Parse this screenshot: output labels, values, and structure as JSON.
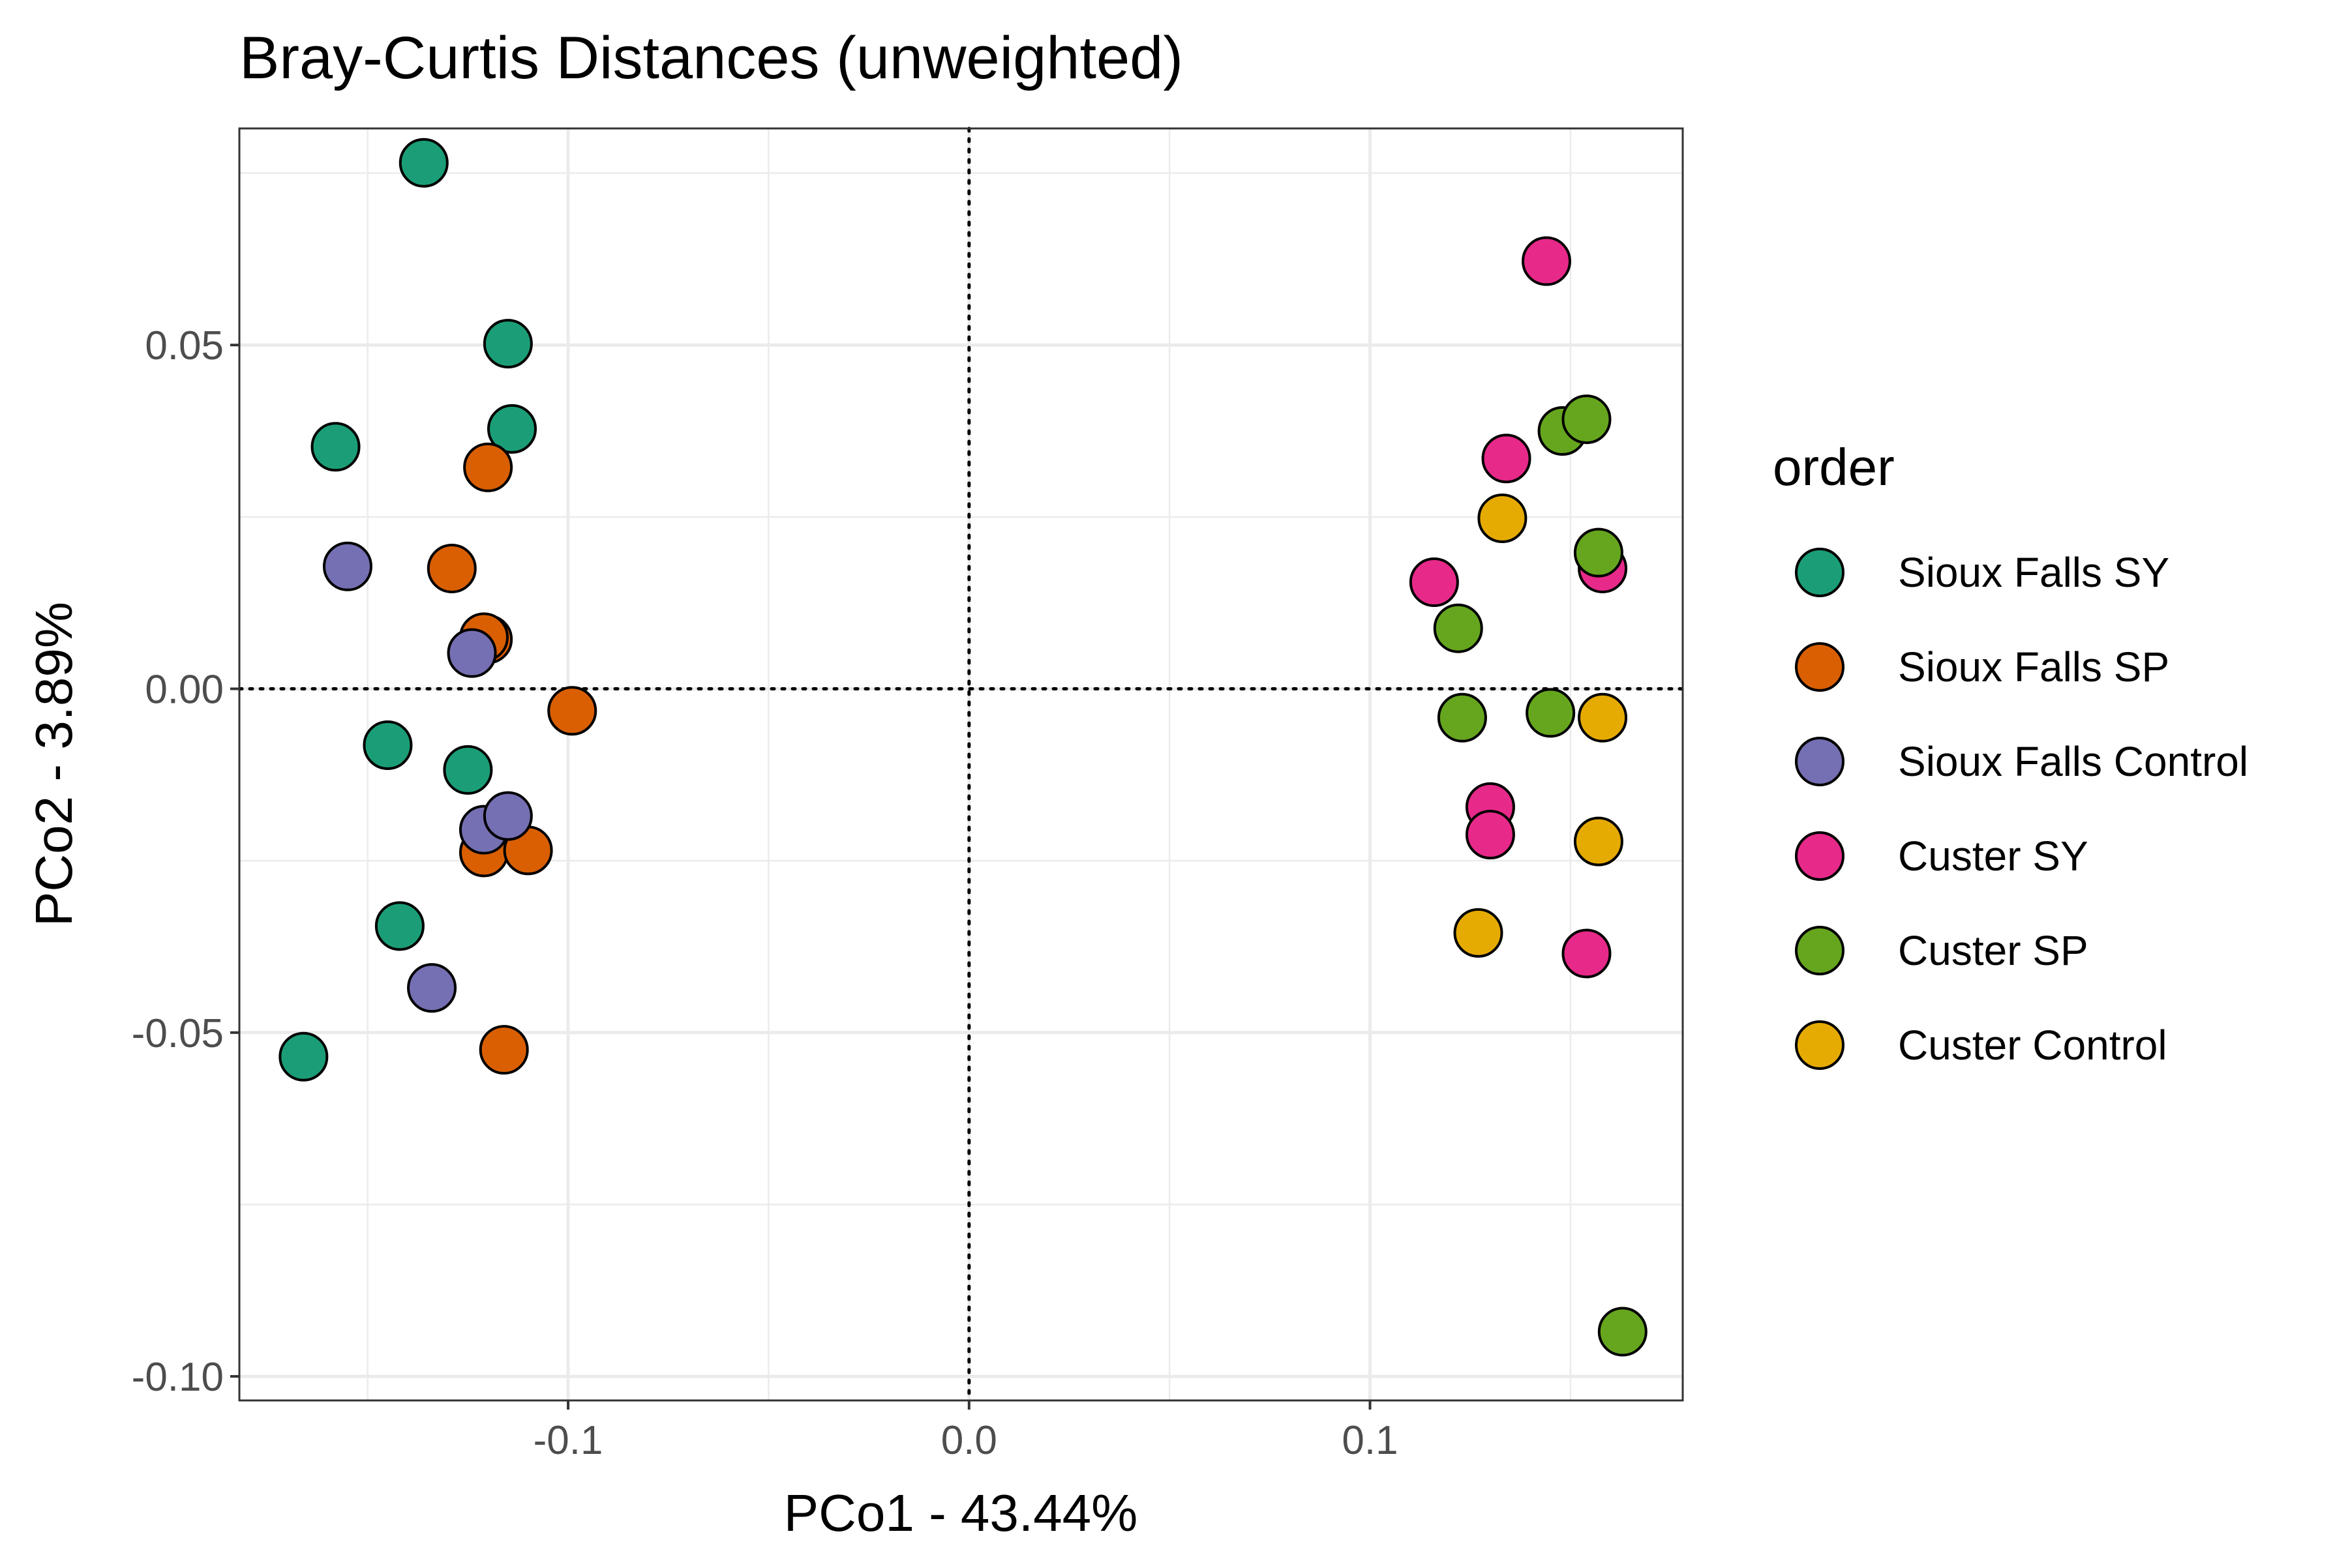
{
  "chart_data": {
    "type": "scatter",
    "title": "Bray-Curtis Distances (unweighted)",
    "xlabel": "PCo1 - 43.44%",
    "ylabel": "PCo2 - 3.89%",
    "xlim": [
      -0.182,
      0.178
    ],
    "ylim": [
      -0.1035,
      0.0815
    ],
    "x_ticks": [
      -0.1,
      0.0,
      0.1
    ],
    "x_tick_labels": [
      "-0.1",
      "0.0",
      "0.1"
    ],
    "y_ticks": [
      -0.1,
      -0.05,
      0.0,
      0.05
    ],
    "y_tick_labels": [
      "-0.10",
      "-0.05",
      "0.00",
      "0.05"
    ],
    "grid": true,
    "reference_lines": {
      "x": 0,
      "y": 0,
      "style": "dotted"
    },
    "legend": {
      "title": "order",
      "position": "right"
    },
    "series": [
      {
        "name": "Sioux Falls SY",
        "color": "#1B9E77",
        "points": [
          [
            -0.136,
            0.0765
          ],
          [
            -0.115,
            0.0502
          ],
          [
            -0.158,
            0.0352
          ],
          [
            -0.114,
            0.0378
          ],
          [
            -0.145,
            -0.0082
          ],
          [
            -0.125,
            -0.0118
          ],
          [
            -0.142,
            -0.0345
          ],
          [
            -0.166,
            -0.0535
          ]
        ]
      },
      {
        "name": "Sioux Falls SP",
        "color": "#D95F02",
        "points": [
          [
            -0.12,
            0.0322
          ],
          [
            -0.129,
            0.0175
          ],
          [
            -0.12,
            0.0072
          ],
          [
            -0.121,
            0.0075
          ],
          [
            -0.099,
            -0.0032
          ],
          [
            -0.121,
            -0.0238
          ],
          [
            -0.11,
            -0.0235
          ],
          [
            -0.116,
            -0.0525
          ]
        ]
      },
      {
        "name": "Sioux Falls Control",
        "color": "#7570B3",
        "points": [
          [
            -0.155,
            0.0178
          ],
          [
            -0.124,
            0.0052
          ],
          [
            -0.121,
            -0.0205
          ],
          [
            -0.115,
            -0.0185
          ],
          [
            -0.134,
            -0.0435
          ]
        ]
      },
      {
        "name": "Custer SY",
        "color": "#E7298A",
        "points": [
          [
            0.144,
            0.0622
          ],
          [
            0.134,
            0.0335
          ],
          [
            0.116,
            0.0155
          ],
          [
            0.158,
            0.0175
          ],
          [
            0.13,
            -0.0172
          ],
          [
            0.13,
            -0.0212
          ],
          [
            0.154,
            -0.0385
          ]
        ]
      },
      {
        "name": "Custer SP",
        "color": "#66A61E",
        "points": [
          [
            0.148,
            0.0375
          ],
          [
            0.154,
            0.0392
          ],
          [
            0.157,
            0.0198
          ],
          [
            0.122,
            0.0088
          ],
          [
            0.123,
            -0.0042
          ],
          [
            0.145,
            -0.0035
          ],
          [
            0.163,
            -0.0935
          ]
        ]
      },
      {
        "name": "Custer Control",
        "color": "#E6AB02",
        "points": [
          [
            0.133,
            0.0248
          ],
          [
            0.158,
            -0.0042
          ],
          [
            0.157,
            -0.0222
          ],
          [
            0.127,
            -0.0355
          ]
        ]
      }
    ]
  }
}
